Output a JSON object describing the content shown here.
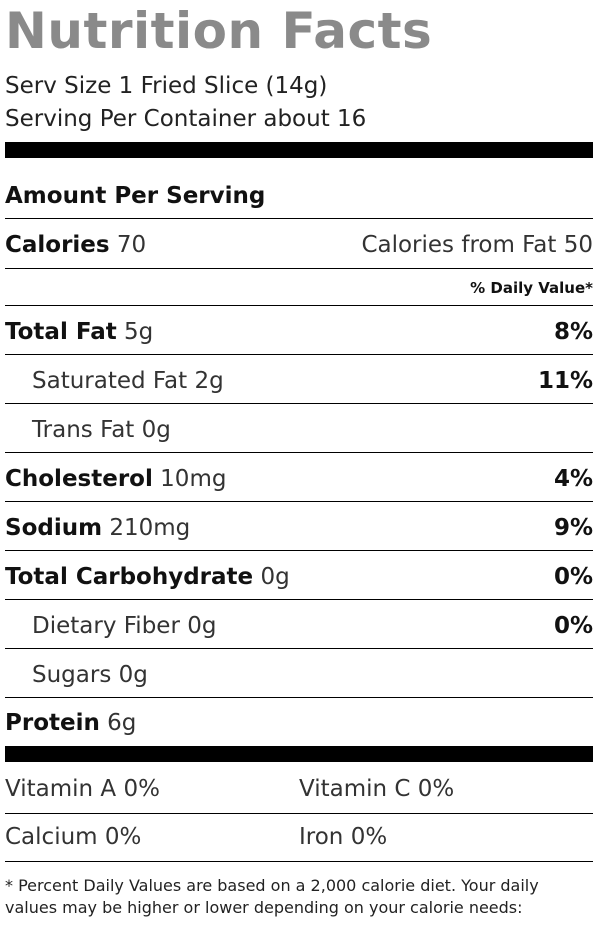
{
  "title": "Nutrition Facts",
  "serving_size": "Serv Size 1 Fried Slice (14g)",
  "servings_per_container": "Serving Per Container about 16",
  "amount_per_serving": "Amount Per Serving",
  "calories": {
    "label": "Calories",
    "value": "70",
    "from_fat": "Calories from Fat 50"
  },
  "daily_value_header": "% Daily Value*",
  "nutrients": [
    {
      "label": "Total Fat",
      "amount": "5g",
      "dv": "8%"
    },
    {
      "label": "Saturated Fat",
      "amount": "2g",
      "dv": "11%"
    },
    {
      "label": "Trans Fat",
      "amount": "0g",
      "dv": ""
    },
    {
      "label": "Cholesterol",
      "amount": "10mg",
      "dv": "4%"
    },
    {
      "label": "Sodium",
      "amount": "210mg",
      "dv": "9%"
    },
    {
      "label": "Total Carbohydrate",
      "amount": "0g",
      "dv": "0%"
    },
    {
      "label": "Dietary Fiber",
      "amount": "0g",
      "dv": "0%"
    },
    {
      "label": "Sugars",
      "amount": "0g",
      "dv": ""
    },
    {
      "label": "Protein",
      "amount": "6g",
      "dv": ""
    }
  ],
  "vitamins": [
    "Vitamin A 0%",
    "Vitamin C 0%",
    "Calcium 0%",
    "Iron 0%"
  ],
  "footnote": "* Percent Daily Values are based on a 2,000 calorie diet. Your daily values may be higher or lower depending on your calorie needs:",
  "colors": {
    "title": "#8a8a8a",
    "rules": "#000000",
    "text": "#111111"
  }
}
